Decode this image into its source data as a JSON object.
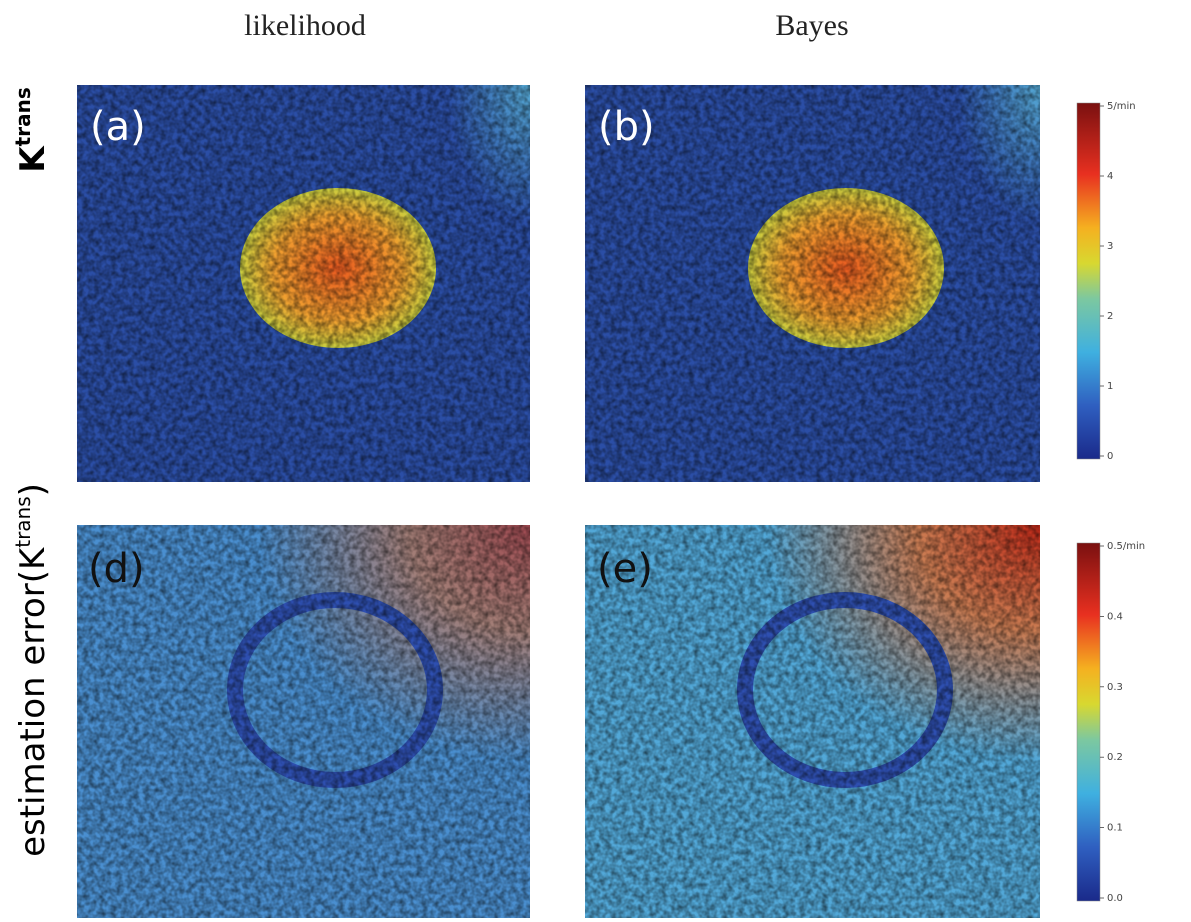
{
  "columns": [
    "likelihood",
    "Bayes"
  ],
  "rows": [
    {
      "label": {
        "prefix": "K",
        "sup": "trans"
      }
    },
    {
      "label": {
        "prefix": "estimation error(K",
        "sup": "trans",
        "suffix": ")"
      }
    }
  ],
  "panels": [
    "(a)",
    "(b)",
    "(d)",
    "(e)"
  ],
  "colorbars": [
    {
      "ticks": [
        "5/min",
        "4",
        "3",
        "2",
        "1",
        "0"
      ]
    },
    {
      "ticks": [
        "0.5/min",
        "0.4",
        "0.3",
        "0.2",
        "0.1",
        "0.0"
      ]
    }
  ]
}
